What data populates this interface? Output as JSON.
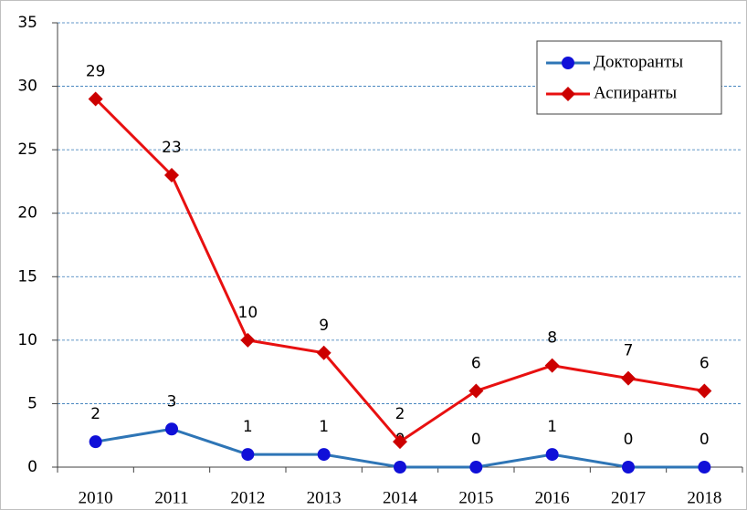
{
  "chart_data": {
    "type": "line",
    "categories": [
      "2010",
      "2011",
      "2012",
      "2013",
      "2014",
      "2015",
      "2016",
      "2017",
      "2018"
    ],
    "series": [
      {
        "name": "Докторанты",
        "color": "#1010d8",
        "line_color": "#2e75b6",
        "marker": "circle",
        "values": [
          2,
          3,
          1,
          1,
          0,
          0,
          1,
          0,
          0
        ]
      },
      {
        "name": "Аспиранты",
        "color": "#cc0000",
        "line_color": "#e81010",
        "marker": "diamond",
        "values": [
          29,
          23,
          10,
          9,
          2,
          6,
          8,
          7,
          6
        ]
      }
    ],
    "ylim": [
      0,
      35
    ],
    "yticks": [
      0,
      5,
      10,
      15,
      20,
      25,
      30,
      35
    ],
    "grid": true,
    "legend": "upper right"
  }
}
